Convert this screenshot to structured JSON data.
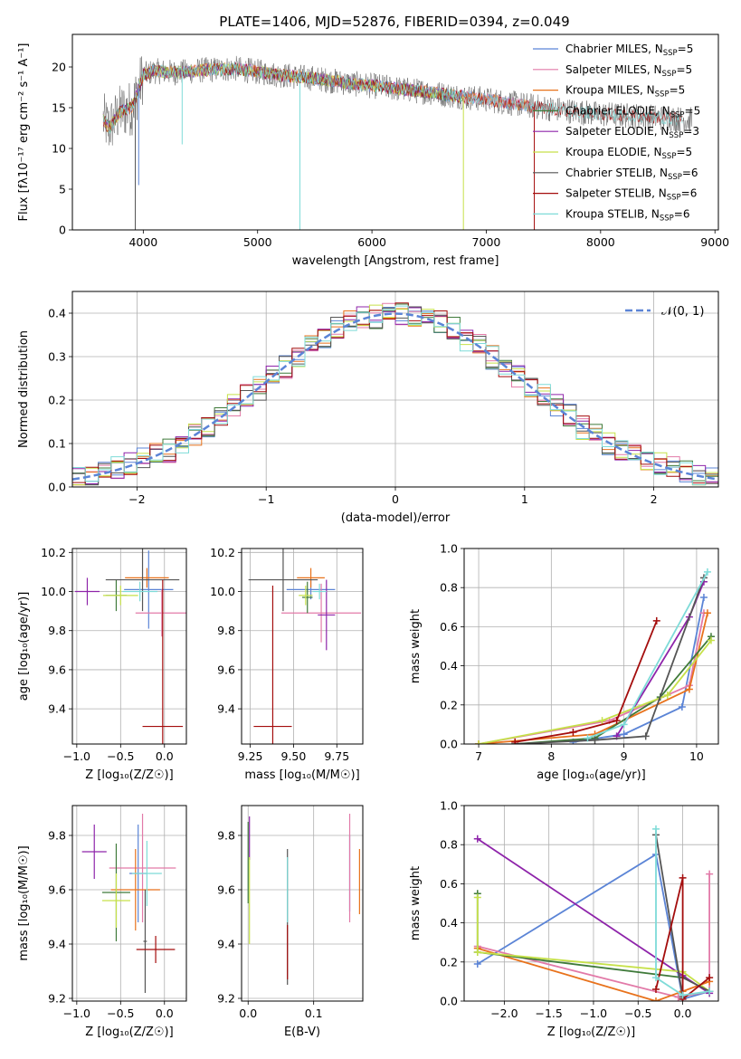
{
  "figure": {
    "title": "PLATE=1406, MJD=52876, FIBERID=0394, z=0.049"
  },
  "colors": {
    "Chabrier MILES": "#5b84d6",
    "Salpeter MILES": "#e27aa8",
    "Kroupa MILES": "#e8721c",
    "Chabrier ELODIE": "#3f7a3a",
    "Salpeter ELODIE": "#8e24aa",
    "Kroupa ELODIE": "#c6e14a",
    "Chabrier STELIB": "#555555",
    "Salpeter STELIB": "#a40d0d",
    "Kroupa STELIB": "#7edbd8",
    "normal": "#5b84d6"
  },
  "chart_data": [
    {
      "id": "spectrum",
      "type": "line",
      "xlabel": "wavelength [Angstrom, rest frame]",
      "ylabel": "Flux [fλ10⁻¹⁷ erg cm⁻² s⁻¹ A⁻¹]",
      "xlim": [
        3380,
        9030
      ],
      "ylim": [
        0,
        24
      ],
      "xticks": [
        4000,
        5000,
        6000,
        7000,
        8000,
        9000
      ],
      "yticks": [
        0,
        5,
        10,
        15,
        20
      ],
      "legend_position": "top-right",
      "legend": [
        {
          "name": "Chabrier MILES",
          "label": "Chabrier MILES, N",
          "sub": "SSP",
          "tail": "=5"
        },
        {
          "name": "Salpeter MILES",
          "label": "Salpeter MILES, N",
          "sub": "SSP",
          "tail": "=5"
        },
        {
          "name": "Kroupa MILES",
          "label": "Kroupa MILES, N",
          "sub": "SSP",
          "tail": "=5"
        },
        {
          "name": "Chabrier ELODIE",
          "label": "Chabrier ELODIE, N",
          "sub": "SSP",
          "tail": "=5"
        },
        {
          "name": "Salpeter ELODIE",
          "label": "Salpeter ELODIE, N",
          "sub": "SSP",
          "tail": "=3"
        },
        {
          "name": "Kroupa ELODIE",
          "label": "Kroupa ELODIE, N",
          "sub": "SSP",
          "tail": "=5"
        },
        {
          "name": "Chabrier STELIB",
          "label": "Chabrier STELIB, N",
          "sub": "SSP",
          "tail": "=6"
        },
        {
          "name": "Salpeter STELIB",
          "label": "Salpeter STELIB, N",
          "sub": "SSP",
          "tail": "=6"
        },
        {
          "name": "Kroupa STELIB",
          "label": "Kroupa STELIB, N",
          "sub": "SSP",
          "tail": "=6"
        }
      ],
      "data_continuum": {
        "x": [
          3650,
          3700,
          3800,
          3900,
          4000,
          4100,
          4300,
          4500,
          4800,
          5000,
          5200,
          5500,
          5800,
          6000,
          6300,
          6500,
          6700,
          7000,
          7200,
          7500,
          7800,
          8000,
          8300,
          8500,
          8700,
          8800
        ],
        "y": [
          13.5,
          12.5,
          14.5,
          15.0,
          19.0,
          19.5,
          19.3,
          19.6,
          19.8,
          19.4,
          19.0,
          18.6,
          18.0,
          17.7,
          17.2,
          16.9,
          16.5,
          16.0,
          15.6,
          15.0,
          14.5,
          14.2,
          14.0,
          13.8,
          13.6,
          13.5
        ]
      },
      "model_spikes": [
        {
          "name": "Chabrier MILES",
          "x": 3960,
          "y": 5.5
        },
        {
          "name": "Kroupa ELODIE",
          "x": 6800,
          "y": 0
        },
        {
          "name": "Kroupa STELIB",
          "x": 5370,
          "y": 0
        },
        {
          "name": "Kroupa STELIB",
          "x": 4340,
          "y": 10.5
        },
        {
          "name": "Chabrier STELIB",
          "x": 3930,
          "y": 0
        },
        {
          "name": "Salpeter STELIB",
          "x": 7420,
          "y": 0
        }
      ]
    },
    {
      "id": "residual_histogram",
      "type": "line",
      "xlabel": "(data-model)/error",
      "ylabel": "Normed distribution",
      "xlim": [
        -2.5,
        2.5
      ],
      "ylim": [
        0,
        0.45
      ],
      "xticks": [
        -2,
        -1,
        0,
        1,
        2
      ],
      "yticks": [
        0.0,
        0.1,
        0.2,
        0.3,
        0.4
      ],
      "grid": true,
      "legend_position": "top-right",
      "normal_label": "𝒩(0, 1)",
      "bin_width": 0.1,
      "noise": [
        0.02,
        -0.015,
        0.025,
        -0.02,
        0.01,
        0.03,
        -0.025,
        0.015,
        -0.01,
        0.02,
        -0.03,
        0.012,
        0.028,
        -0.018,
        0.006,
        -0.024,
        0.03,
        -0.008,
        0.018,
        -0.028,
        0.022,
        -0.012
      ]
    },
    {
      "id": "age_vs_metallicity",
      "type": "scatter",
      "xlabel": "Z [log₁₀(Z/Z☉)]",
      "ylabel": "age  [log₁₀(age/yr)]",
      "xlim": [
        -1.05,
        0.25
      ],
      "ylim": [
        9.22,
        10.22
      ],
      "xticks": [
        -1.0,
        -0.5,
        0.0
      ],
      "yticks": [
        9.4,
        9.6,
        9.8,
        10.0,
        10.2
      ],
      "grid": true,
      "points": [
        {
          "name": "Chabrier MILES",
          "x": -0.18,
          "y": 10.01,
          "xerr": 0.28,
          "yerr": 0.2
        },
        {
          "name": "Salpeter MILES",
          "x": -0.03,
          "y": 9.89,
          "xerr": 0.3,
          "yerr": 0.12
        },
        {
          "name": "Kroupa MILES",
          "x": -0.2,
          "y": 10.07,
          "xerr": 0.25,
          "yerr": 0.05
        },
        {
          "name": "Chabrier ELODIE",
          "x": -0.55,
          "y": 9.98,
          "xerr": 0.12,
          "yerr": 0.08
        },
        {
          "name": "Salpeter ELODIE",
          "x": -0.88,
          "y": 10.0,
          "xerr": 0.14,
          "yerr": 0.07
        },
        {
          "name": "Kroupa ELODIE",
          "x": -0.5,
          "y": 9.98,
          "xerr": 0.2,
          "yerr": 0.05
        },
        {
          "name": "Chabrier STELIB",
          "x": -0.25,
          "y": 10.06,
          "xerr": 0.42,
          "yerr": 0.16
        },
        {
          "name": "Salpeter STELIB",
          "x": -0.02,
          "y": 9.31,
          "xerr": 0.23,
          "yerr": 0.75
        },
        {
          "name": "Kroupa STELIB",
          "x": -0.28,
          "y": 10.0,
          "xerr": 0.2,
          "yerr": 0.05
        }
      ]
    },
    {
      "id": "age_vs_mass",
      "type": "scatter",
      "xlabel": "mass [log₁₀(M/M☉)]",
      "ylabel": "",
      "xlim": [
        9.2,
        9.9
      ],
      "ylim": [
        9.22,
        10.22
      ],
      "xticks": [
        9.25,
        9.5,
        9.75
      ],
      "yticks": [
        9.4,
        9.6,
        9.8,
        10.0,
        10.2
      ],
      "grid": true,
      "points": [
        {
          "name": "Chabrier MILES",
          "x": 9.6,
          "y": 10.01,
          "xerr": 0.14,
          "yerr": 0.05
        },
        {
          "name": "Salpeter MILES",
          "x": 9.66,
          "y": 9.89,
          "xerr": 0.23,
          "yerr": 0.15
        },
        {
          "name": "Kroupa MILES",
          "x": 9.6,
          "y": 10.07,
          "xerr": 0.08,
          "yerr": 0.05
        },
        {
          "name": "Chabrier ELODIE",
          "x": 9.58,
          "y": 9.97,
          "xerr": 0.03,
          "yerr": 0.08
        },
        {
          "name": "Salpeter ELODIE",
          "x": 9.69,
          "y": 9.88,
          "xerr": 0.05,
          "yerr": 0.18
        },
        {
          "name": "Kroupa ELODIE",
          "x": 9.57,
          "y": 9.98,
          "xerr": 0.04,
          "yerr": 0.05
        },
        {
          "name": "Chabrier STELIB",
          "x": 9.44,
          "y": 10.06,
          "xerr": 0.2,
          "yerr": 0.16
        },
        {
          "name": "Salpeter STELIB",
          "x": 9.38,
          "y": 9.31,
          "xerr": 0.11,
          "yerr": 0.72
        },
        {
          "name": "Kroupa STELIB",
          "x": 9.65,
          "y": 10.0,
          "xerr": 0.04,
          "yerr": 0.04
        }
      ]
    },
    {
      "id": "mass_weight_vs_age",
      "type": "line",
      "xlabel": "age  [log₁₀(age/yr)]",
      "ylabel": "mass weight",
      "xlim": [
        6.8,
        10.3
      ],
      "ylim": [
        0,
        1.0
      ],
      "xticks": [
        7,
        8,
        9,
        10
      ],
      "yticks": [
        0.0,
        0.2,
        0.4,
        0.6,
        0.8,
        1.0
      ],
      "grid": true,
      "series": [
        {
          "name": "Chabrier MILES",
          "x": [
            8.3,
            9.0,
            9.8,
            10.1
          ],
          "y": [
            0.01,
            0.05,
            0.19,
            0.75
          ]
        },
        {
          "name": "Salpeter MILES",
          "x": [
            7.0,
            8.8,
            9.9,
            10.1
          ],
          "y": [
            0.0,
            0.12,
            0.3,
            0.67
          ]
        },
        {
          "name": "Kroupa MILES",
          "x": [
            7.0,
            8.6,
            9.9,
            10.15
          ],
          "y": [
            0.0,
            0.05,
            0.28,
            0.67
          ]
        },
        {
          "name": "Chabrier ELODIE",
          "x": [
            7.5,
            8.6,
            9.5,
            10.2
          ],
          "y": [
            0.0,
            0.03,
            0.24,
            0.55
          ]
        },
        {
          "name": "Salpeter ELODIE",
          "x": [
            8.9,
            9.9,
            10.1
          ],
          "y": [
            0.04,
            0.65,
            0.83
          ]
        },
        {
          "name": "Kroupa ELODIE",
          "x": [
            7.0,
            8.7,
            9.6,
            10.2
          ],
          "y": [
            0.0,
            0.12,
            0.25,
            0.53
          ]
        },
        {
          "name": "Chabrier STELIB",
          "x": [
            7.5,
            8.6,
            9.3,
            10.1
          ],
          "y": [
            0.0,
            0.02,
            0.04,
            0.85
          ]
        },
        {
          "name": "Salpeter STELIB",
          "x": [
            7.5,
            8.3,
            8.9,
            9.45
          ],
          "y": [
            0.01,
            0.06,
            0.12,
            0.63
          ]
        },
        {
          "name": "Kroupa STELIB",
          "x": [
            8.5,
            9.0,
            10.15
          ],
          "y": [
            0.03,
            0.1,
            0.88
          ]
        }
      ]
    },
    {
      "id": "mass_vs_metallicity",
      "type": "scatter",
      "xlabel": "Z [log₁₀(Z/Z☉)]",
      "ylabel": "mass [log₁₀(M/M☉)]",
      "xlim": [
        -1.05,
        0.25
      ],
      "ylim": [
        9.19,
        9.91
      ],
      "xticks": [
        -1.0,
        -0.5,
        0.0
      ],
      "yticks": [
        9.2,
        9.4,
        9.6,
        9.8
      ],
      "grid": true,
      "points": [
        {
          "name": "Chabrier MILES",
          "x": -0.3,
          "y": 9.66,
          "xerr": 0.1,
          "yerr": 0.18
        },
        {
          "name": "Salpeter MILES",
          "x": -0.25,
          "y": 9.68,
          "xerr": 0.38,
          "yerr": 0.2
        },
        {
          "name": "Kroupa MILES",
          "x": -0.33,
          "y": 9.6,
          "xerr": 0.28,
          "yerr": 0.15
        },
        {
          "name": "Chabrier ELODIE",
          "x": -0.55,
          "y": 9.59,
          "xerr": 0.16,
          "yerr": 0.18
        },
        {
          "name": "Salpeter ELODIE",
          "x": -0.8,
          "y": 9.74,
          "xerr": 0.14,
          "yerr": 0.1
        },
        {
          "name": "Kroupa ELODIE",
          "x": -0.55,
          "y": 9.56,
          "xerr": 0.16,
          "yerr": 0.1
        },
        {
          "name": "Chabrier STELIB",
          "x": -0.22,
          "y": 9.41,
          "xerr": 0.02,
          "yerr": 0.19
        },
        {
          "name": "Salpeter STELIB",
          "x": -0.1,
          "y": 9.38,
          "xerr": 0.22,
          "yerr": 0.05
        },
        {
          "name": "Kroupa STELIB",
          "x": -0.2,
          "y": 9.66,
          "xerr": 0.17,
          "yerr": 0.12
        }
      ]
    },
    {
      "id": "mass_vs_extinction",
      "type": "scatter",
      "xlabel": "E(B-V)",
      "ylabel": "",
      "xlim": [
        -0.01,
        0.175
      ],
      "ylim": [
        9.19,
        9.91
      ],
      "xticks": [
        0.0,
        0.1
      ],
      "yticks": [
        9.2,
        9.4,
        9.6,
        9.8
      ],
      "grid": true,
      "points": [
        {
          "name": "Chabrier MILES",
          "x": 0.155,
          "y": 9.66,
          "yerr": 0.14
        },
        {
          "name": "Salpeter MILES",
          "x": 0.155,
          "y": 9.68,
          "yerr": 0.2
        },
        {
          "name": "Kroupa MILES",
          "x": 0.17,
          "y": 9.63,
          "yerr": 0.12
        },
        {
          "name": "Chabrier ELODIE",
          "x": 0.0,
          "y": 9.7,
          "yerr": 0.15
        },
        {
          "name": "Salpeter ELODIE",
          "x": 0.002,
          "y": 9.79,
          "yerr": 0.08
        },
        {
          "name": "Kroupa ELODIE",
          "x": 0.002,
          "y": 9.56,
          "yerr": 0.16
        },
        {
          "name": "Chabrier STELIB",
          "x": 0.06,
          "y": 9.5,
          "yerr": 0.25
        },
        {
          "name": "Salpeter STELIB",
          "x": 0.06,
          "y": 9.37,
          "yerr": 0.1
        },
        {
          "name": "Kroupa STELIB",
          "x": 0.06,
          "y": 9.6,
          "yerr": 0.12
        }
      ]
    },
    {
      "id": "mass_weight_vs_metallicity",
      "type": "line",
      "xlabel": "Z [log₁₀(Z/Z☉)]",
      "ylabel": "mass weight",
      "xlim": [
        -2.45,
        0.4
      ],
      "ylim": [
        0,
        1.0
      ],
      "xticks": [
        -2.0,
        -1.5,
        -1.0,
        -0.5,
        0.0
      ],
      "yticks": [
        0.0,
        0.2,
        0.4,
        0.6,
        0.8,
        1.0
      ],
      "grid": true,
      "series": [
        {
          "name": "Chabrier MILES",
          "x": [
            -2.3,
            -0.3,
            0.0,
            0.3
          ],
          "y": [
            0.19,
            0.75,
            0.01,
            0.05
          ]
        },
        {
          "name": "Salpeter MILES",
          "x": [
            -2.3,
            -0.05,
            0.3,
            0.3
          ],
          "y": [
            0.28,
            0.02,
            0.05,
            0.65
          ]
        },
        {
          "name": "Kroupa MILES",
          "x": [
            -2.3,
            -0.3,
            0.0,
            0.3
          ],
          "y": [
            0.27,
            0.0,
            0.05,
            0.1
          ]
        },
        {
          "name": "Chabrier ELODIE",
          "x": [
            -2.3,
            -2.3,
            0.0
          ],
          "y": [
            0.55,
            0.25,
            0.12
          ]
        },
        {
          "name": "Salpeter ELODIE",
          "x": [
            -2.3,
            0.0,
            0.3
          ],
          "y": [
            0.83,
            0.13,
            0.04
          ]
        },
        {
          "name": "Kroupa ELODIE",
          "x": [
            -2.3,
            -2.3,
            0.0,
            0.3
          ],
          "y": [
            0.53,
            0.25,
            0.15,
            0.05
          ]
        },
        {
          "name": "Chabrier STELIB",
          "x": [
            -0.3,
            0.0,
            0.0,
            0.3
          ],
          "y": [
            0.85,
            0.02,
            0.12,
            0.05
          ]
        },
        {
          "name": "Salpeter STELIB",
          "x": [
            -0.3,
            0.0,
            0.0,
            0.3
          ],
          "y": [
            0.06,
            0.63,
            0.01,
            0.12
          ]
        },
        {
          "name": "Kroupa STELIB",
          "x": [
            -0.3,
            -0.3,
            0.0,
            0.3
          ],
          "y": [
            0.88,
            0.12,
            0.03,
            0.05
          ]
        }
      ]
    }
  ]
}
